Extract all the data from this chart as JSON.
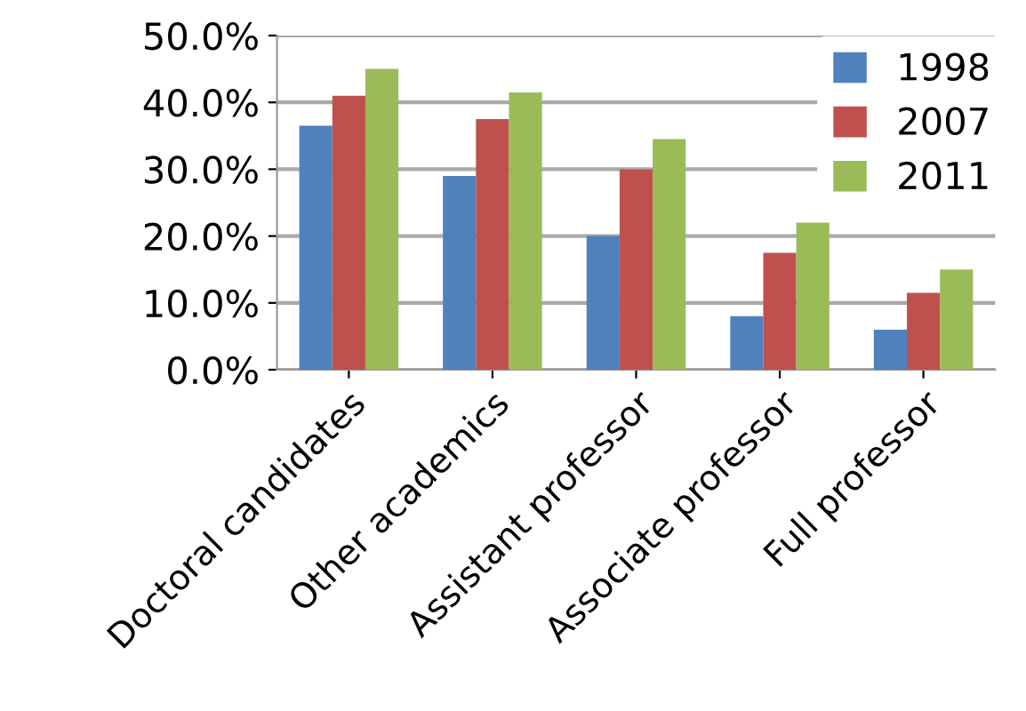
{
  "chart_data": {
    "type": "bar",
    "categories": [
      "Doctoral candidates",
      "Other academics",
      "Assistant professor",
      "Associate professor",
      "Full professor"
    ],
    "series": [
      {
        "name": "1998",
        "color": "#4f81bd",
        "values": [
          36.5,
          29,
          20,
          8,
          6
        ]
      },
      {
        "name": "2007",
        "color": "#c0504d",
        "values": [
          41,
          37.5,
          30,
          17.5,
          11.5
        ]
      },
      {
        "name": "2011",
        "color": "#9bbb59",
        "values": [
          45,
          41.5,
          34.5,
          22,
          15
        ]
      }
    ],
    "ylim": [
      0,
      50
    ],
    "yticks": [
      {
        "value": 0,
        "label": "0.0%"
      },
      {
        "value": 10,
        "label": "10.0%"
      },
      {
        "value": 20,
        "label": "20.0%"
      },
      {
        "value": 30,
        "label": "30.0%"
      },
      {
        "value": 40,
        "label": "40.0%"
      },
      {
        "value": 50,
        "label": "50.0%"
      }
    ],
    "grid": "y",
    "legend": "top right"
  }
}
